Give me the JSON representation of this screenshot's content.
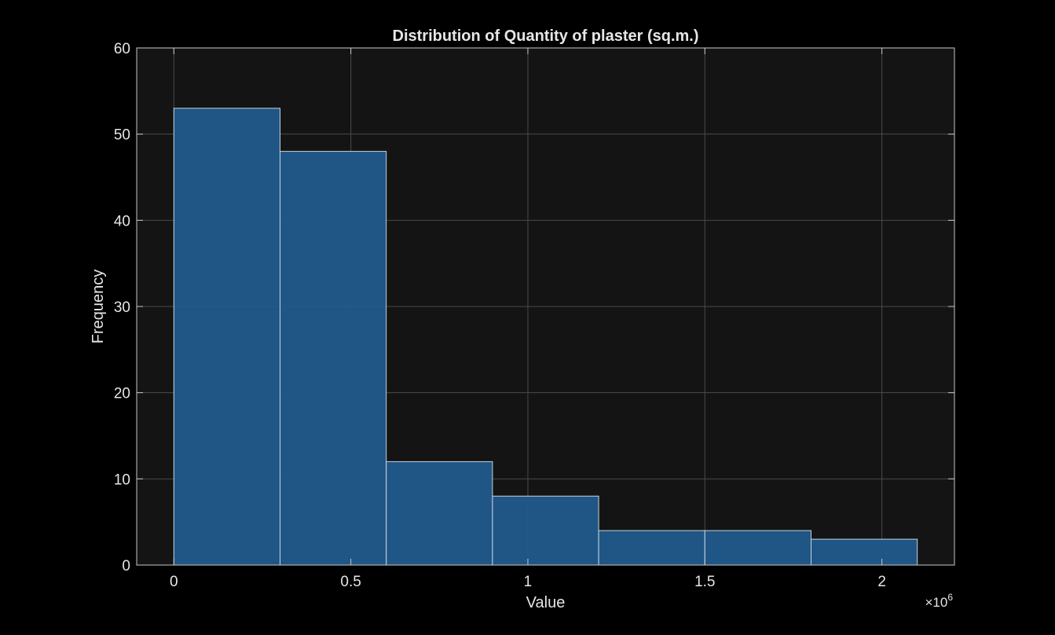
{
  "chart_data": {
    "type": "bar",
    "title": "Distribution of Quantity of plaster (sq.m.)",
    "xlabel": "Value",
    "ylabel": "Frequency",
    "x_multiplier_label": "×10",
    "x_multiplier_exponent": "6",
    "bins": [
      {
        "start": 0.0,
        "end": 0.3,
        "count": 53
      },
      {
        "start": 0.3,
        "end": 0.6,
        "count": 48
      },
      {
        "start": 0.6,
        "end": 0.9,
        "count": 12
      },
      {
        "start": 0.9,
        "end": 1.2,
        "count": 8
      },
      {
        "start": 1.2,
        "end": 1.5,
        "count": 4
      },
      {
        "start": 1.5,
        "end": 1.8,
        "count": 4
      },
      {
        "start": 1.8,
        "end": 2.1,
        "count": 3
      }
    ],
    "x_unit_scale": 1000000,
    "xlim": [
      -0.105,
      2.205
    ],
    "ylim": [
      0,
      60
    ],
    "xticks": [
      0,
      0.5,
      1,
      1.5,
      2
    ],
    "xtick_labels": [
      "0",
      "0.5",
      "1",
      "1.5",
      "2"
    ],
    "yticks": [
      0,
      10,
      20,
      30,
      40,
      50,
      60
    ],
    "ytick_labels": [
      "0",
      "10",
      "20",
      "30",
      "40",
      "50",
      "60"
    ],
    "grid": true,
    "colors": {
      "figure_bg": "#000000",
      "axes_bg": "#141414",
      "bar_fill": "#215a8c",
      "bar_edge": "#c9d3dd",
      "grid": "#4a4a4a",
      "axis": "#c8c8c8",
      "text": "#e6e6e6"
    }
  }
}
